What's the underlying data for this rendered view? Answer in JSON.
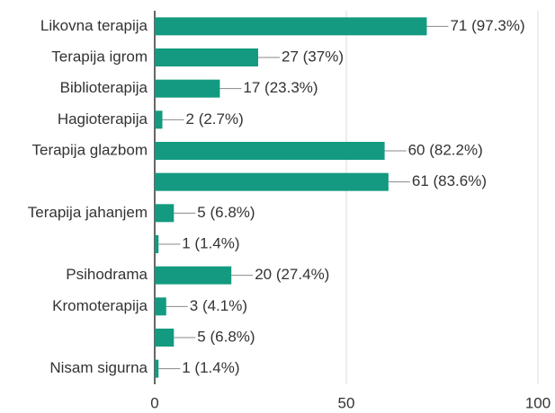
{
  "chart_data": {
    "type": "bar",
    "orientation": "horizontal",
    "categories": [
      "Likovna terapija",
      "Terapija igrom",
      "Biblioterapija",
      "Hagioterapija",
      "Terapija glazbom",
      null,
      "Terapija jahanjem",
      null,
      "Psihodrama",
      "Kromoterapija",
      null,
      "Nisam sigurna"
    ],
    "values": [
      71,
      27,
      17,
      2,
      60,
      61,
      5,
      1,
      20,
      3,
      5,
      1
    ],
    "value_labels": [
      "71 (97.3%)",
      "27 (37%)",
      "17 (23.3%)",
      "2 (2.7%)",
      "60 (82.2%)",
      "61 (83.6%)",
      "5 (6.8%)",
      "1 (1.4%)",
      "20 (27.4%)",
      "3 (4.1%)",
      "5 (6.8%)",
      "1 (1.4%)"
    ],
    "color": "#139a80",
    "xlim": [
      0,
      100
    ],
    "xticks": [
      0,
      50,
      100
    ],
    "grid": true
  }
}
